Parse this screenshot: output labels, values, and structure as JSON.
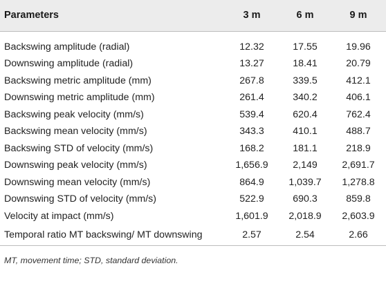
{
  "table": {
    "headers": [
      "Parameters",
      "3 m",
      "6 m",
      "9 m"
    ],
    "rows": [
      [
        "Backswing amplitude (radial)",
        "12.32",
        "17.55",
        "19.96"
      ],
      [
        "Downswing amplitude (radial)",
        "13.27",
        "18.41",
        "20.79"
      ],
      [
        "Backswing metric amplitude (mm)",
        "267.8",
        "339.5",
        "412.1"
      ],
      [
        "Downswing metric amplitude (mm)",
        "261.4",
        "340.2",
        "406.1"
      ],
      [
        "Backswing peak velocity (mm/s)",
        "539.4",
        "620.4",
        "762.4"
      ],
      [
        "Backswing mean velocity (mm/s)",
        "343.3",
        "410.1",
        "488.7"
      ],
      [
        "Backswing STD of velocity (mm/s)",
        "168.2",
        "181.1",
        "218.9"
      ],
      [
        "Downswing peak velocity (mm/s)",
        "1,656.9",
        "2,149",
        "2,691.7"
      ],
      [
        "Downswing mean velocity (mm/s)",
        "864.9",
        "1,039.7",
        "1,278.8"
      ],
      [
        "Downswing STD of velocity (mm/s)",
        "522.9",
        "690.3",
        "859.8"
      ],
      [
        "Velocity at impact (mm/s)",
        "1,601.9",
        "2,018.9",
        "2,603.9"
      ],
      [
        "Temporal ratio MT backswing/ MT downswing",
        "2.57",
        "2.54",
        "2.66"
      ]
    ]
  },
  "footnote": "MT, movement time; STD, standard deviation."
}
